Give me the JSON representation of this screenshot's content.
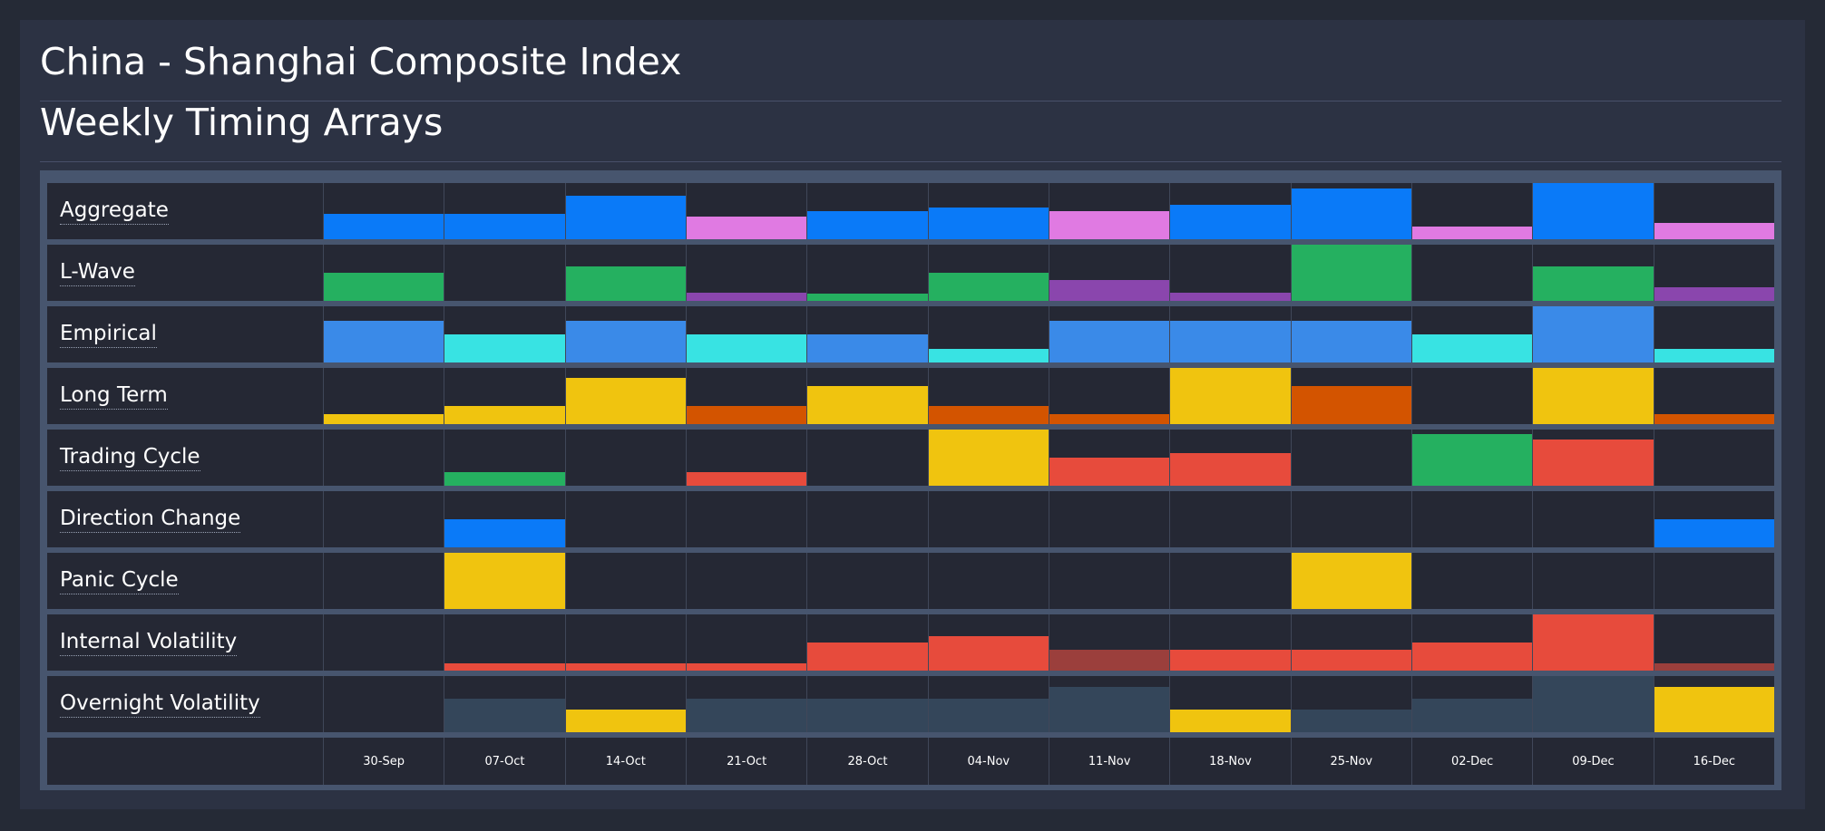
{
  "header": {
    "title": "China - Shanghai Composite Index",
    "subtitle": "Weekly Timing Arrays"
  },
  "colors": {
    "blue": "#0a7af8",
    "magenta": "#e07ae2",
    "green": "#25b060",
    "purple": "#8a46ad",
    "steel_blue": "#3a8ae8",
    "cyan": "#38e3e3",
    "yellow": "#f0c40f",
    "orange": "#d35400",
    "red": "#e74b3c",
    "dark_red": "#9b3f3c",
    "slate": "#34465a"
  },
  "chart_data": {
    "type": "heatmap",
    "title": "Weekly Timing Arrays",
    "categories": [
      "30-Sep",
      "07-Oct",
      "14-Oct",
      "21-Oct",
      "28-Oct",
      "04-Nov",
      "11-Nov",
      "18-Nov",
      "25-Nov",
      "02-Dec",
      "09-Dec",
      "16-Dec"
    ],
    "value_scale": "bar height as fraction of cell height (0-1)",
    "series": [
      {
        "name": "Aggregate",
        "values": [
          0.45,
          0.45,
          0.78,
          0.4,
          0.5,
          0.56,
          0.5,
          0.62,
          0.9,
          0.22,
          1.0,
          0.29
        ],
        "colors": [
          "blue",
          "blue",
          "blue",
          "magenta",
          "blue",
          "blue",
          "magenta",
          "blue",
          "blue",
          "magenta",
          "blue",
          "magenta"
        ]
      },
      {
        "name": "L-Wave",
        "values": [
          0.5,
          0,
          0.62,
          0.14,
          0.13,
          0.5,
          0.37,
          0.14,
          1.0,
          0,
          0.62,
          0.25
        ],
        "colors": [
          "green",
          "green",
          "green",
          "purple",
          "green",
          "green",
          "purple",
          "purple",
          "green",
          "green",
          "green",
          "purple"
        ]
      },
      {
        "name": "Empirical",
        "values": [
          0.75,
          0.5,
          0.75,
          0.5,
          0.5,
          0.25,
          0.75,
          0.75,
          0.75,
          0.5,
          1.0,
          0.25
        ],
        "colors": [
          "steel_blue",
          "cyan",
          "steel_blue",
          "cyan",
          "steel_blue",
          "cyan",
          "steel_blue",
          "steel_blue",
          "steel_blue",
          "cyan",
          "steel_blue",
          "cyan"
        ]
      },
      {
        "name": "Long Term",
        "values": [
          0.17,
          0.33,
          0.83,
          0.33,
          0.67,
          0.33,
          0.17,
          1.0,
          0.67,
          0,
          1.0,
          0.17
        ],
        "colors": [
          "yellow",
          "yellow",
          "yellow",
          "orange",
          "yellow",
          "orange",
          "orange",
          "yellow",
          "orange",
          "yellow",
          "yellow",
          "orange"
        ]
      },
      {
        "name": "Trading Cycle",
        "values": [
          0,
          0.25,
          0,
          0.25,
          0,
          1.0,
          0.5,
          0.58,
          0,
          0.92,
          0.83,
          0
        ],
        "colors": [
          "green",
          "green",
          "green",
          "red",
          "green",
          "yellow",
          "red",
          "red",
          "green",
          "green",
          "red",
          "green"
        ]
      },
      {
        "name": "Direction Change",
        "values": [
          0,
          0.5,
          0,
          0,
          0,
          0,
          0,
          0,
          0,
          0,
          0,
          0.5
        ],
        "colors": [
          "blue",
          "blue",
          "blue",
          "blue",
          "blue",
          "blue",
          "blue",
          "blue",
          "blue",
          "blue",
          "blue",
          "blue"
        ]
      },
      {
        "name": "Panic Cycle",
        "values": [
          0,
          1.0,
          0,
          0,
          0,
          0,
          0,
          0,
          1.0,
          0,
          0,
          0
        ],
        "colors": [
          "yellow",
          "yellow",
          "yellow",
          "yellow",
          "yellow",
          "yellow",
          "yellow",
          "yellow",
          "yellow",
          "yellow",
          "yellow",
          "yellow"
        ]
      },
      {
        "name": "Internal Volatility",
        "values": [
          0,
          0.13,
          0.13,
          0.13,
          0.5,
          0.62,
          0.37,
          0.37,
          0.37,
          0.5,
          1.0,
          0.13
        ],
        "colors": [
          "red",
          "red",
          "red",
          "red",
          "red",
          "red",
          "dark_red",
          "red",
          "red",
          "red",
          "red",
          "dark_red"
        ]
      },
      {
        "name": "Overnight Volatility",
        "values": [
          0,
          0.6,
          0.4,
          0.6,
          0.6,
          0.6,
          0.8,
          0.4,
          0.4,
          0.6,
          1.0,
          0.8
        ],
        "colors": [
          "slate",
          "slate",
          "yellow",
          "slate",
          "slate",
          "slate",
          "slate",
          "yellow",
          "slate",
          "slate",
          "slate",
          "yellow"
        ]
      }
    ]
  }
}
